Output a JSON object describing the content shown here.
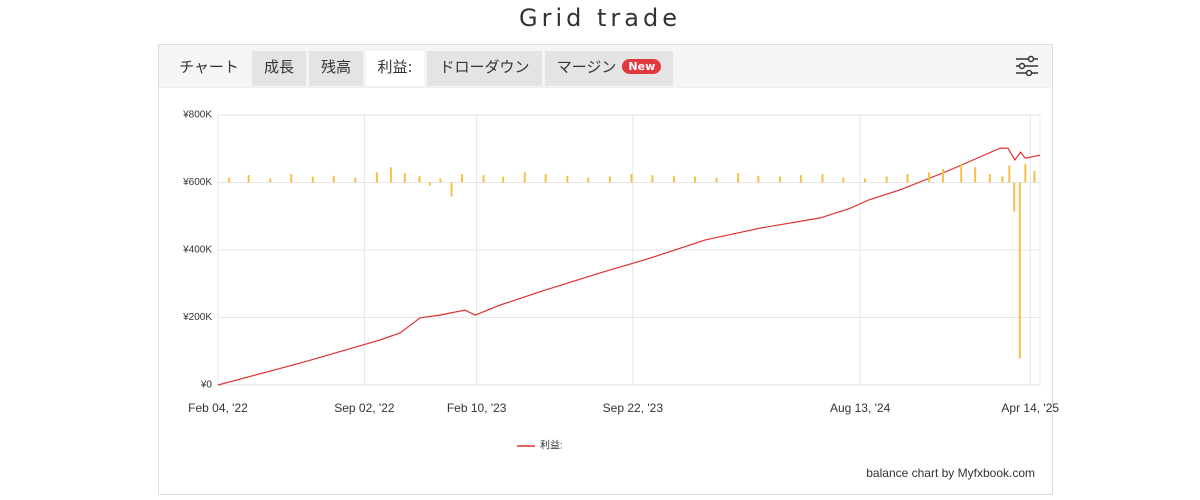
{
  "title": "Grid trade",
  "tabs": [
    "チャート",
    "成長",
    "残高",
    "利益:",
    "ドローダウン",
    "マージン"
  ],
  "badge": "New",
  "footer": "balance chart by Myfxbook.com",
  "chart_data": {
    "type": "line",
    "xlim": [
      "2022-02-04",
      "2025-04-28"
    ],
    "xticks": [
      {
        "value": "2022-02-04",
        "label": "Feb 04, '22"
      },
      {
        "value": "2022-09-02",
        "label": "Sep 02, '22"
      },
      {
        "value": "2023-02-10",
        "label": "Feb 10, '23"
      },
      {
        "value": "2023-09-22",
        "label": "Sep 22, '23"
      },
      {
        "value": "2024-08-13",
        "label": "Aug 13, '24"
      },
      {
        "value": "2025-04-14",
        "label": "Apr 14, '25"
      }
    ],
    "ylim": [
      0,
      800000
    ],
    "yticks": [
      {
        "value": 0,
        "label": "¥0"
      },
      {
        "value": 200000,
        "label": "¥200K"
      },
      {
        "value": 400000,
        "label": "¥400K"
      },
      {
        "value": 600000,
        "label": "¥600K"
      },
      {
        "value": 800000,
        "label": "¥800K"
      }
    ],
    "y2lim": [
      -600000,
      200000
    ],
    "grid": true,
    "series": [
      {
        "name": "利益:",
        "color": "#e0302d",
        "x": [
          "2022-02-04",
          "2022-06-02",
          "2022-09-24",
          "2022-10-23",
          "2022-11-21",
          "2022-12-19",
          "2023-01-24",
          "2023-02-08",
          "2023-03-16",
          "2023-05-16",
          "2023-08-06",
          "2023-10-17",
          "2024-01-04",
          "2024-03-23",
          "2024-06-17",
          "2024-07-30",
          "2024-08-25",
          "2024-10-09",
          "2024-12-20",
          "2025-03-02",
          "2025-03-13",
          "2025-03-23",
          "2025-03-31",
          "2025-04-07",
          "2025-04-28"
        ],
        "values": [
          0,
          65000,
          133000,
          154000,
          199000,
          207000,
          222000,
          207000,
          237000,
          279000,
          332000,
          376000,
          430000,
          465000,
          495000,
          524000,
          548000,
          578000,
          637000,
          702000,
          702000,
          667000,
          690000,
          672000,
          681000
        ]
      },
      {
        "type": "bar",
        "axis": "y2",
        "color": "#f5c04a",
        "x": [
          "2022-02-20",
          "2022-03-20",
          "2022-04-20",
          "2022-05-20",
          "2022-06-20",
          "2022-07-20",
          "2022-08-20",
          "2022-09-20",
          "2022-10-10",
          "2022-10-30",
          "2022-11-20",
          "2022-12-05",
          "2022-12-20",
          "2023-01-05",
          "2023-01-20",
          "2023-02-20",
          "2023-03-20",
          "2023-04-20",
          "2023-05-20",
          "2023-06-20",
          "2023-07-20",
          "2023-08-20",
          "2023-09-20",
          "2023-10-20",
          "2023-11-20",
          "2023-12-20",
          "2024-01-20",
          "2024-02-20",
          "2024-03-20",
          "2024-04-20",
          "2024-05-20",
          "2024-06-20",
          "2024-07-20",
          "2024-08-20",
          "2024-09-20",
          "2024-10-20",
          "2024-11-20",
          "2024-12-10",
          "2025-01-05",
          "2025-01-25",
          "2025-02-15",
          "2025-03-05",
          "2025-03-15",
          "2025-03-22",
          "2025-03-30",
          "2025-04-07",
          "2025-04-20"
        ],
        "values": [
          15000,
          22000,
          12000,
          25000,
          18000,
          20000,
          14000,
          30000,
          45000,
          28000,
          20000,
          -9000,
          12000,
          -42000,
          25000,
          22000,
          18000,
          30000,
          25000,
          20000,
          15000,
          18000,
          25000,
          22000,
          20000,
          18000,
          15000,
          28000,
          20000,
          18000,
          22000,
          25000,
          15000,
          12000,
          18000,
          25000,
          30000,
          40000,
          55000,
          45000,
          25000,
          18000,
          50000,
          -86000,
          -521000,
          55000,
          35000
        ]
      }
    ]
  }
}
